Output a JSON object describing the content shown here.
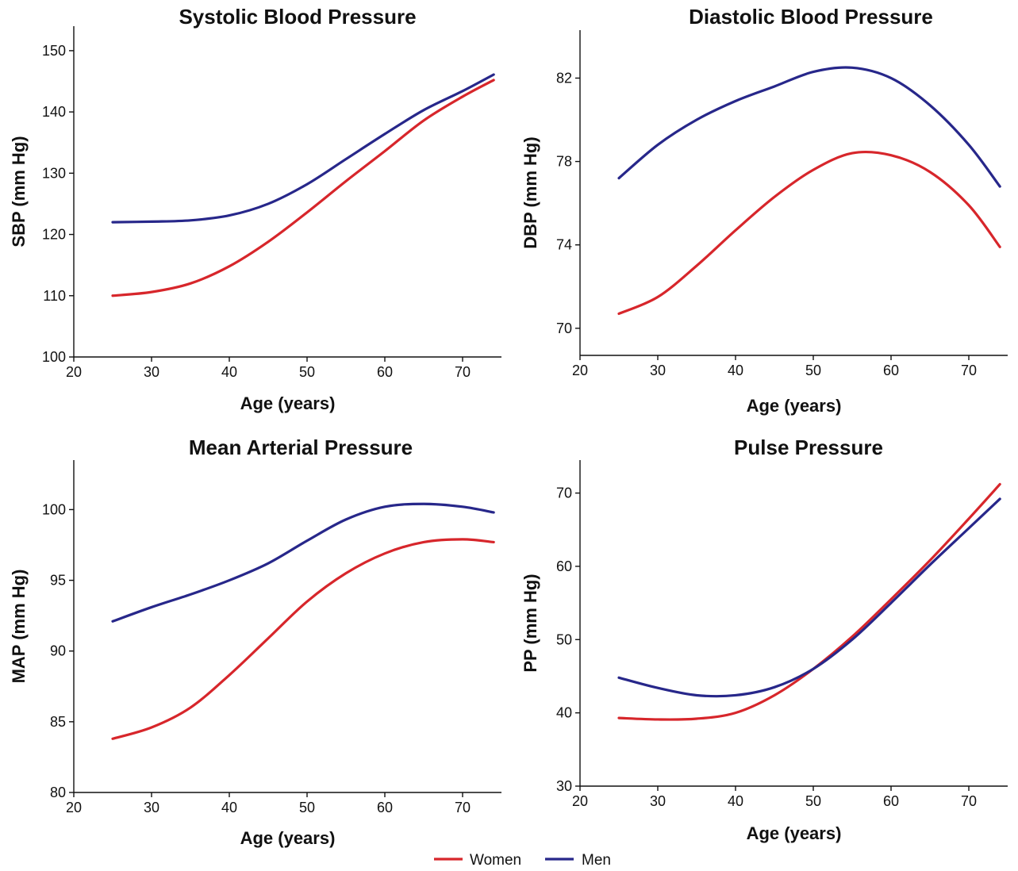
{
  "colors": {
    "women": "#d7262b",
    "men": "#27278a"
  },
  "legend": [
    {
      "name": "Women",
      "color": "#d7262b"
    },
    {
      "name": "Men",
      "color": "#27278a"
    }
  ],
  "chart_data": [
    {
      "type": "line",
      "title": "Systolic Blood Pressure",
      "xlabel": "Age (years)",
      "ylabel": "SBP (mm Hg)",
      "xlim": [
        20,
        75
      ],
      "ylim": [
        100,
        154
      ],
      "xticks": [
        20,
        30,
        40,
        50,
        60,
        70
      ],
      "yticks": [
        100,
        110,
        120,
        130,
        140,
        150
      ],
      "grid": false,
      "series": [
        {
          "name": "Women",
          "color": "#d7262b",
          "x": [
            25,
            30,
            35,
            40,
            45,
            50,
            55,
            60,
            65,
            70,
            74
          ],
          "y": [
            110.0,
            110.6,
            112.0,
            114.8,
            118.8,
            123.6,
            128.7,
            133.6,
            138.6,
            142.5,
            145.2
          ]
        },
        {
          "name": "Men",
          "color": "#27278a",
          "x": [
            25,
            30,
            35,
            40,
            45,
            50,
            55,
            60,
            65,
            70,
            74
          ],
          "y": [
            122.0,
            122.1,
            122.3,
            123.1,
            125.0,
            128.2,
            132.3,
            136.4,
            140.3,
            143.4,
            146.1
          ]
        }
      ]
    },
    {
      "type": "line",
      "title": "Diastolic Blood Pressure",
      "xlabel": "Age (years)",
      "ylabel": "DBP (mm Hg)",
      "xlim": [
        20,
        75
      ],
      "ylim": [
        68.7,
        84.3
      ],
      "xticks": [
        20,
        30,
        40,
        50,
        60,
        70
      ],
      "yticks": [
        70,
        74,
        78,
        82
      ],
      "grid": false,
      "series": [
        {
          "name": "Women",
          "color": "#d7262b",
          "x": [
            25,
            30,
            35,
            40,
            45,
            50,
            55,
            60,
            65,
            70,
            74
          ],
          "y": [
            70.7,
            71.5,
            73.0,
            74.7,
            76.3,
            77.6,
            78.4,
            78.3,
            77.5,
            75.9,
            73.9
          ]
        },
        {
          "name": "Men",
          "color": "#27278a",
          "x": [
            25,
            30,
            35,
            40,
            45,
            50,
            55,
            60,
            65,
            70,
            74
          ],
          "y": [
            77.2,
            78.8,
            80.0,
            80.9,
            81.6,
            82.3,
            82.5,
            82.0,
            80.7,
            78.8,
            76.8
          ]
        }
      ]
    },
    {
      "type": "line",
      "title": "Mean Arterial Pressure",
      "xlabel": "Age (years)",
      "ylabel": "MAP (mm Hg)",
      "xlim": [
        20,
        75
      ],
      "ylim": [
        80,
        103.5
      ],
      "xticks": [
        20,
        30,
        40,
        50,
        60,
        70
      ],
      "yticks": [
        80,
        85,
        90,
        95,
        100
      ],
      "grid": false,
      "series": [
        {
          "name": "Women",
          "color": "#d7262b",
          "x": [
            25,
            30,
            35,
            40,
            45,
            50,
            55,
            60,
            65,
            70,
            74
          ],
          "y": [
            83.8,
            84.6,
            86.0,
            88.3,
            90.9,
            93.5,
            95.5,
            96.9,
            97.7,
            97.9,
            97.7
          ]
        },
        {
          "name": "Men",
          "color": "#27278a",
          "x": [
            25,
            30,
            35,
            40,
            45,
            50,
            55,
            60,
            65,
            70,
            74
          ],
          "y": [
            92.1,
            93.1,
            94.0,
            95.0,
            96.2,
            97.8,
            99.3,
            100.2,
            100.4,
            100.2,
            99.8
          ]
        }
      ]
    },
    {
      "type": "line",
      "title": "Pulse Pressure",
      "xlabel": "Age (years)",
      "ylabel": "PP (mm Hg)",
      "xlim": [
        20,
        75
      ],
      "ylim": [
        30,
        74.5
      ],
      "xticks": [
        20,
        30,
        40,
        50,
        60,
        70
      ],
      "yticks": [
        30,
        40,
        50,
        60,
        70
      ],
      "grid": false,
      "series": [
        {
          "name": "Women",
          "color": "#d7262b",
          "x": [
            25,
            30,
            35,
            40,
            45,
            50,
            55,
            60,
            65,
            70,
            74
          ],
          "y": [
            39.3,
            39.1,
            39.2,
            40.0,
            42.4,
            46.0,
            50.4,
            55.5,
            60.8,
            66.5,
            71.2
          ]
        },
        {
          "name": "Men",
          "color": "#27278a",
          "x": [
            25,
            30,
            35,
            40,
            45,
            50,
            55,
            60,
            65,
            70,
            74
          ],
          "y": [
            44.8,
            43.4,
            42.4,
            42.4,
            43.5,
            46.0,
            50.0,
            55.0,
            60.2,
            65.2,
            69.2
          ]
        }
      ]
    }
  ]
}
